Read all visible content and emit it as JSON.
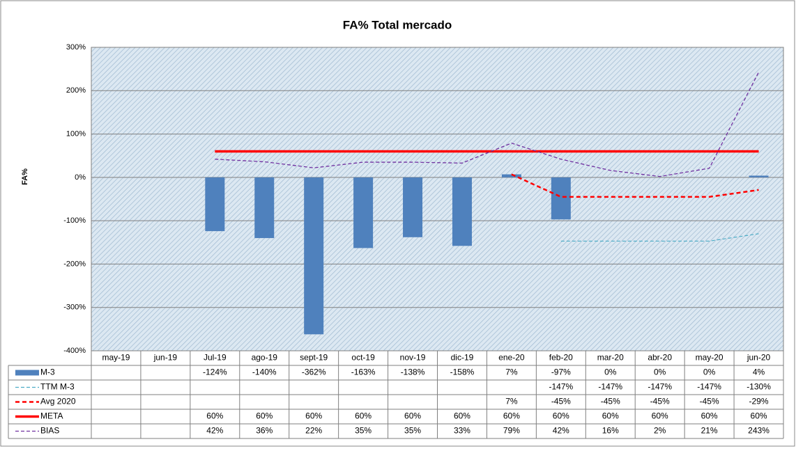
{
  "chart_data": {
    "type": "bar",
    "title": "FA% Total mercado",
    "y_label": "FA%",
    "categories": [
      "may-19",
      "jun-19",
      "Jul-19",
      "ago-19",
      "sept-19",
      "oct-19",
      "nov-19",
      "dic-19",
      "ene-20",
      "feb-20",
      "mar-20",
      "abr-20",
      "may-20",
      "jun-20"
    ],
    "ylim": [
      -400,
      300
    ],
    "yticks": [
      {
        "value": -400,
        "label": "-400%"
      },
      {
        "value": -300,
        "label": "-300%"
      },
      {
        "value": -200,
        "label": "-200%"
      },
      {
        "value": -100,
        "label": "-100%"
      },
      {
        "value": 0,
        "label": "0%"
      },
      {
        "value": 100,
        "label": "100%"
      },
      {
        "value": 200,
        "label": "200%"
      },
      {
        "value": 300,
        "label": "300%"
      }
    ],
    "grid": true,
    "series": [
      {
        "name": "M-3",
        "type": "bar",
        "color": "#4f81bd",
        "values": [
          null,
          null,
          -124,
          -140,
          -362,
          -163,
          -138,
          -158,
          7,
          -97,
          0,
          0,
          0,
          4
        ],
        "value_labels": [
          null,
          null,
          "-124%",
          "-140%",
          "-362%",
          "-163%",
          "-138%",
          "-158%",
          "7%",
          "-97%",
          "0%",
          "0%",
          "0%",
          "4%"
        ]
      },
      {
        "name": "TTM M-3",
        "type": "line",
        "color": "#4bacc6",
        "values": [
          null,
          null,
          null,
          null,
          null,
          null,
          null,
          null,
          null,
          -147,
          -147,
          -147,
          -147,
          -130
        ],
        "value_labels": [
          null,
          null,
          null,
          null,
          null,
          null,
          null,
          null,
          null,
          "-147%",
          "-147%",
          "-147%",
          "-147%",
          "-130%"
        ]
      },
      {
        "name": "Avg 2020",
        "type": "line",
        "color": "#ff0000",
        "values": [
          null,
          null,
          null,
          null,
          null,
          null,
          null,
          null,
          7,
          -45,
          -45,
          -45,
          -45,
          -29
        ],
        "value_labels": [
          null,
          null,
          null,
          null,
          null,
          null,
          null,
          null,
          "7%",
          "-45%",
          "-45%",
          "-45%",
          "-45%",
          "-29%"
        ]
      },
      {
        "name": "META",
        "type": "line",
        "color": "#ff0000",
        "values": [
          null,
          null,
          60,
          60,
          60,
          60,
          60,
          60,
          60,
          60,
          60,
          60,
          60,
          60
        ],
        "value_labels": [
          null,
          null,
          "60%",
          "60%",
          "60%",
          "60%",
          "60%",
          "60%",
          "60%",
          "60%",
          "60%",
          "60%",
          "60%",
          "60%"
        ]
      },
      {
        "name": "BIAS",
        "type": "line",
        "color": "#7030a0",
        "values": [
          null,
          null,
          42,
          36,
          22,
          35,
          35,
          33,
          79,
          42,
          16,
          2,
          21,
          243
        ],
        "value_labels": [
          null,
          null,
          "42%",
          "36%",
          "22%",
          "35%",
          "35%",
          "33%",
          "79%",
          "42%",
          "16%",
          "2%",
          "21%",
          "243%"
        ]
      }
    ]
  }
}
